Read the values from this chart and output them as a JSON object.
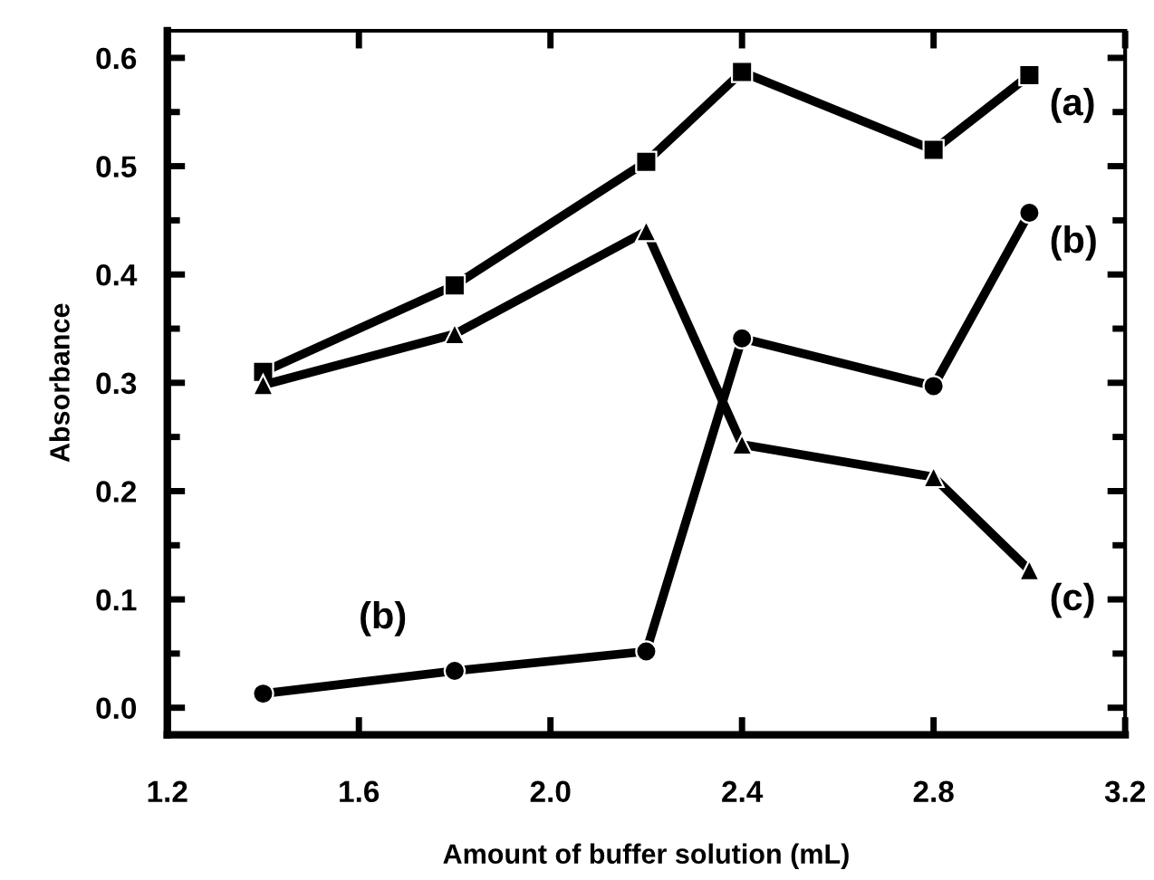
{
  "chart_data": {
    "type": "line",
    "xlabel": "Amount of buffer solution (mL)",
    "ylabel": "Absorbance",
    "x": [
      1.4,
      1.8,
      2.2,
      2.4,
      2.8,
      3.0
    ],
    "series": [
      {
        "name": "(a)",
        "color": "#000000",
        "marker": "square",
        "values": [
          0.31,
          0.39,
          0.504,
          0.587,
          0.515,
          0.584
        ]
      },
      {
        "name": "(b)",
        "color": "#000000",
        "marker": "circle",
        "values": [
          0.013,
          0.034,
          0.052,
          0.341,
          0.297,
          0.457
        ]
      },
      {
        "name": "(c)",
        "color": "#000000",
        "marker": "triangle",
        "values": [
          0.298,
          0.345,
          0.44,
          0.243,
          0.213,
          0.127
        ]
      }
    ],
    "annotations": [
      "(b)"
    ],
    "xlim": [
      1.2,
      3.2
    ],
    "xticks": [
      {
        "value": 1.2,
        "label": "1.2"
      },
      1.6,
      {
        "value": 2.0,
        "label": "2.0"
      },
      2.4,
      2.8,
      {
        "value": 3.2,
        "label": "3.2"
      }
    ],
    "ylim": [
      -0.025,
      0.625
    ],
    "yticks": [
      {
        "value": 0.0,
        "label": "0.0"
      },
      0.1,
      0.2,
      0.3,
      0.4,
      0.5,
      0.6
    ],
    "grid": false,
    "legend": "right",
    "line_style": "solid"
  }
}
